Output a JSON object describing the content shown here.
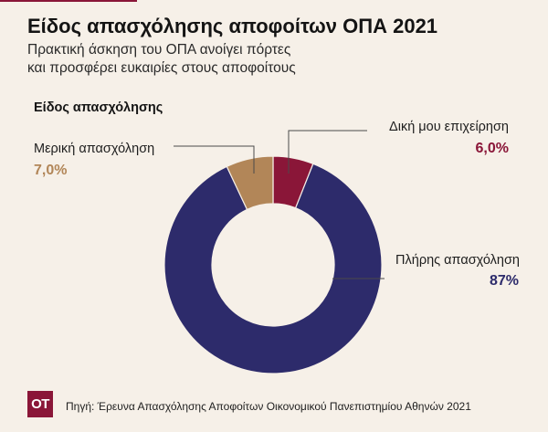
{
  "page": {
    "background": "#f6f0e8",
    "accent": "#8a1638"
  },
  "chart_data": {
    "type": "pie",
    "donut": true,
    "title": "Είδος απασχόλησης αποφοίτων ΟΠΑ 2021",
    "subtitle_lines": [
      "Πρακτική άσκηση του ΟΠΑ ανοίγει πόρτες",
      "και προσφέρει ευκαιρίες στους αποφοίτους"
    ],
    "heading": "Είδος απασχόλησης",
    "categories": [
      "Δική μου επιχείρηση",
      "Πλήρης απασχόληση",
      "Μερική απασχόληση"
    ],
    "values": [
      6.0,
      87,
      7.0
    ],
    "value_labels": [
      "6,0%",
      "87%",
      "7,0%"
    ],
    "colors": [
      "#8a1638",
      "#2d2b6b",
      "#b28658"
    ],
    "source": "Πηγή: Έρευνα Απασχόλησης Αποφοίτων Οικονομικού Πανεπιστημίου Αθηνών 2021"
  },
  "footer": {
    "logo_text": "ΟΤ"
  }
}
